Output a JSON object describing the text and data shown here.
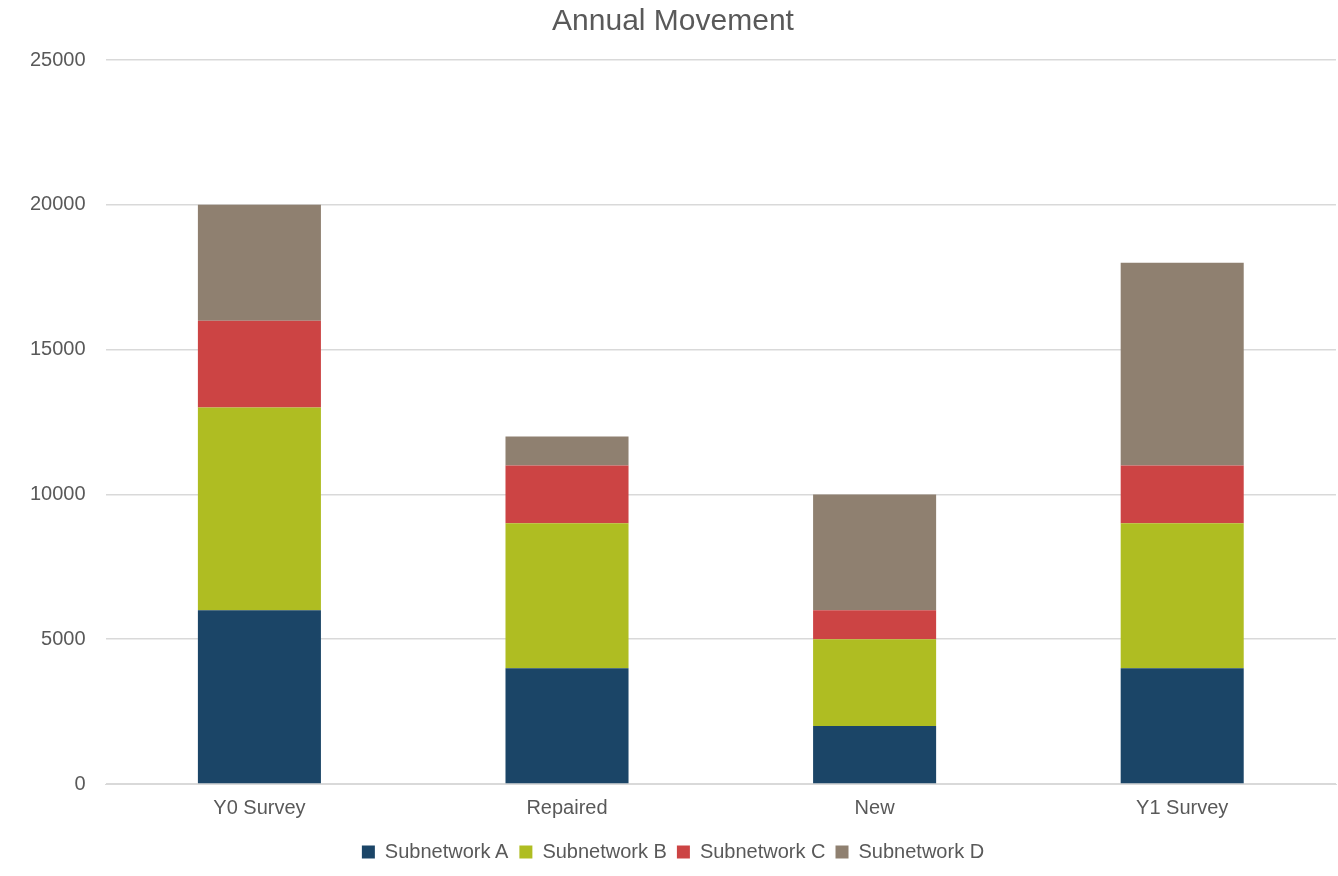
{
  "chart_data": {
    "type": "bar",
    "title": "Annual Movement",
    "stacked": true,
    "categories": [
      "Y0 Survey",
      "Repaired",
      "New",
      "Y1 Survey"
    ],
    "series": [
      {
        "name": "Subnetwork A",
        "color": "#1b4567",
        "values": [
          6000,
          4000,
          2000,
          4000
        ]
      },
      {
        "name": "Subnetwork B",
        "color": "#afbd22",
        "values": [
          7000,
          5000,
          3000,
          5000
        ]
      },
      {
        "name": "Subnetwork C",
        "color": "#cc4444",
        "values": [
          3000,
          2000,
          1000,
          2000
        ]
      },
      {
        "name": "Subnetwork D",
        "color": "#8f8070",
        "values": [
          4000,
          1000,
          4000,
          7000
        ]
      }
    ],
    "ylim": [
      0,
      25000
    ],
    "yticks": [
      0,
      5000,
      10000,
      15000,
      20000,
      25000
    ],
    "grid": "y",
    "legend": "bottom"
  }
}
